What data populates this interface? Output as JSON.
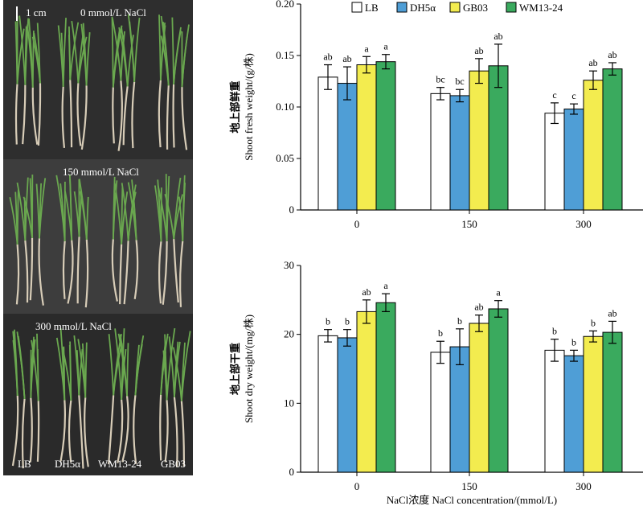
{
  "photo": {
    "scale_label": "1 cm",
    "sections": [
      {
        "label": "0 mmol/L NaCl",
        "bg": "#2e2e2e"
      },
      {
        "label": "150 mmol/L NaCl",
        "bg": "#3d3d3d"
      },
      {
        "label": "300 mmol/L NaCl",
        "bg": "#2a2a2a"
      }
    ],
    "strain_labels": [
      "LB",
      "DH5α",
      "WM13-24",
      "GB03"
    ],
    "leaf_color": "#6aa84f",
    "root_color": "#d8cdb8"
  },
  "chart_data": [
    {
      "type": "bar",
      "categories": [
        "0",
        "150",
        "300"
      ],
      "ylabel_cn": "地上部鲜重",
      "ylabel_en": "Shoot fresh weight/(g/株)",
      "ylim": [
        0,
        0.2
      ],
      "yticks": [
        "0",
        "0.05",
        "0.10",
        "0.15",
        "0.20"
      ],
      "series": [
        {
          "name": "LB",
          "color": "#ffffff",
          "values": [
            0.129,
            0.113,
            0.094
          ],
          "errors": [
            0.012,
            0.006,
            0.01
          ],
          "letters": [
            "ab",
            "bc",
            "c"
          ]
        },
        {
          "name": "DH5α",
          "color": "#4f9ed6",
          "values": [
            0.123,
            0.111,
            0.098
          ],
          "errors": [
            0.016,
            0.006,
            0.005
          ],
          "letters": [
            "ab",
            "bc",
            "c"
          ]
        },
        {
          "name": "GB03",
          "color": "#f3ec4f",
          "values": [
            0.141,
            0.135,
            0.126
          ],
          "errors": [
            0.008,
            0.012,
            0.009
          ],
          "letters": [
            "a",
            "ab",
            "ab"
          ]
        },
        {
          "name": "WM13-24",
          "color": "#3aaa5e",
          "values": [
            0.144,
            0.14,
            0.137
          ],
          "errors": [
            0.007,
            0.021,
            0.006
          ],
          "letters": [
            "a",
            "ab",
            "ab"
          ]
        }
      ]
    },
    {
      "type": "bar",
      "categories": [
        "0",
        "150",
        "300"
      ],
      "ylabel_cn": "地上部干重",
      "ylabel_en": "Shoot dry weight/(mg/株)",
      "xlabel": "NaCl浓度 NaCl concentration/(mmol/L)",
      "ylim": [
        0,
        30
      ],
      "yticks": [
        "0",
        "10",
        "20",
        "30"
      ],
      "series": [
        {
          "name": "LB",
          "color": "#ffffff",
          "values": [
            19.8,
            17.4,
            17.7
          ],
          "errors": [
            0.9,
            1.6,
            1.6
          ],
          "letters": [
            "b",
            "b",
            "b"
          ]
        },
        {
          "name": "DH5α",
          "color": "#4f9ed6",
          "values": [
            19.5,
            18.2,
            16.9
          ],
          "errors": [
            1.2,
            2.6,
            0.8
          ],
          "letters": [
            "b",
            "b",
            "b"
          ]
        },
        {
          "name": "GB03",
          "color": "#f3ec4f",
          "values": [
            23.3,
            21.6,
            19.7
          ],
          "errors": [
            1.7,
            1.2,
            0.8
          ],
          "letters": [
            "ab",
            "ab",
            "b"
          ]
        },
        {
          "name": "WM13-24",
          "color": "#3aaa5e",
          "values": [
            24.6,
            23.7,
            20.3
          ],
          "errors": [
            1.3,
            1.2,
            1.6
          ],
          "letters": [
            "a",
            "a",
            "ab"
          ]
        }
      ]
    }
  ]
}
